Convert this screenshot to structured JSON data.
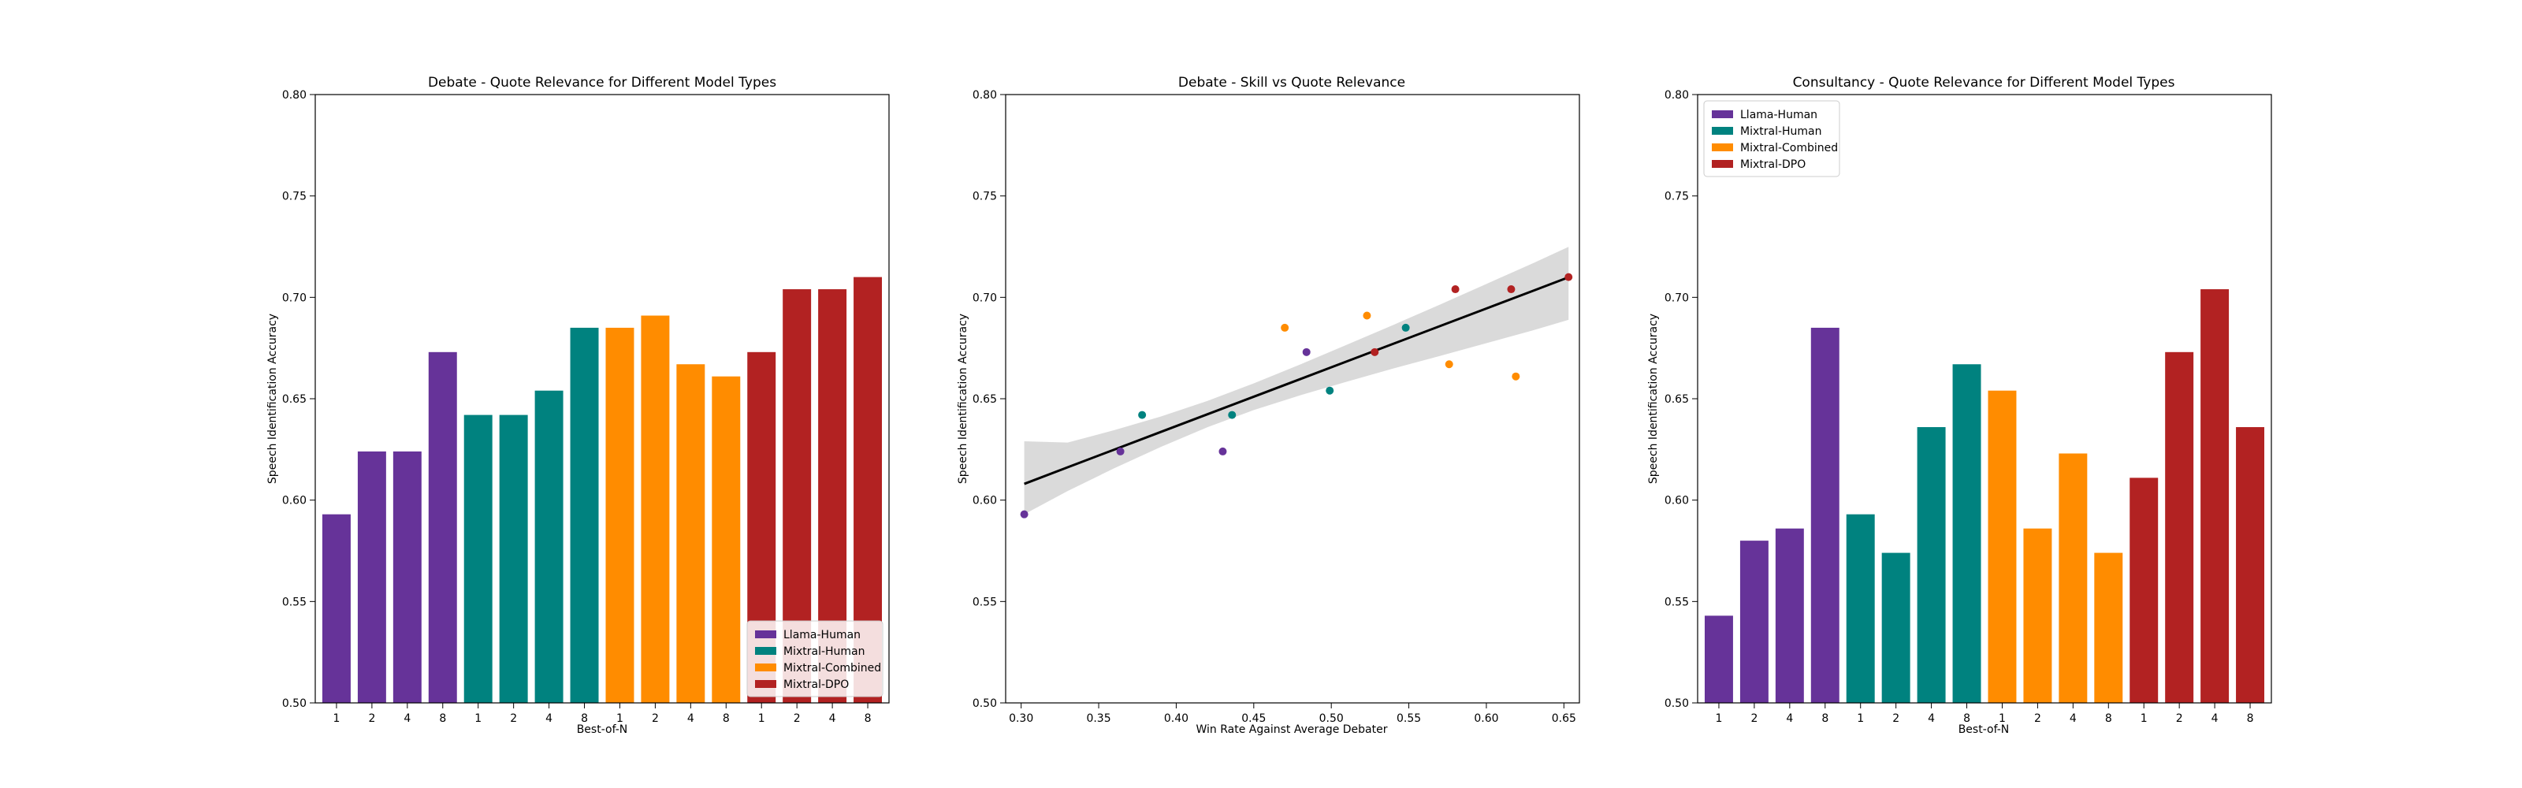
{
  "colors": {
    "Llama-Human": "#663399",
    "Mixtral-Human": "#00827f",
    "Mixtral-Combined": "#ff8c00",
    "Mixtral-DPO": "#b22222",
    "fit_line": "#000000",
    "ci_band": "#d3d3d3"
  },
  "chart_data": [
    {
      "type": "bar",
      "title": "Debate - Quote Relevance for Different Model Types",
      "xlabel": "Best-of-N",
      "ylabel": "Speech Identification Accuracy",
      "ylim": [
        0.5,
        0.8
      ],
      "yticks": [
        0.5,
        0.55,
        0.6,
        0.65,
        0.7,
        0.75,
        0.8
      ],
      "categories": [
        "1",
        "2",
        "4",
        "8"
      ],
      "legend_position": "lower-right",
      "series": [
        {
          "name": "Llama-Human",
          "values": [
            0.593,
            0.624,
            0.624,
            0.673
          ]
        },
        {
          "name": "Mixtral-Human",
          "values": [
            0.642,
            0.642,
            0.654,
            0.685
          ]
        },
        {
          "name": "Mixtral-Combined",
          "values": [
            0.685,
            0.691,
            0.667,
            0.661
          ]
        },
        {
          "name": "Mixtral-DPO",
          "values": [
            0.673,
            0.704,
            0.704,
            0.71
          ]
        }
      ]
    },
    {
      "type": "scatter",
      "title": "Debate - Skill vs Quote Relevance",
      "xlabel": "Win Rate Against Average Debater",
      "ylabel": "Speech Identification Accuracy",
      "xlim": [
        0.29,
        0.66
      ],
      "ylim": [
        0.5,
        0.8
      ],
      "xticks": [
        0.3,
        0.35,
        0.4,
        0.45,
        0.5,
        0.55,
        0.6,
        0.65
      ],
      "yticks": [
        0.5,
        0.55,
        0.6,
        0.65,
        0.7,
        0.75,
        0.8
      ],
      "series": [
        {
          "name": "Llama-Human",
          "points": [
            [
              0.302,
              0.593
            ],
            [
              0.364,
              0.624
            ],
            [
              0.43,
              0.624
            ],
            [
              0.484,
              0.673
            ]
          ]
        },
        {
          "name": "Mixtral-Human",
          "points": [
            [
              0.378,
              0.642
            ],
            [
              0.436,
              0.642
            ],
            [
              0.499,
              0.654
            ],
            [
              0.548,
              0.685
            ]
          ]
        },
        {
          "name": "Mixtral-Combined",
          "points": [
            [
              0.47,
              0.685
            ],
            [
              0.523,
              0.691
            ],
            [
              0.576,
              0.667
            ],
            [
              0.619,
              0.661
            ]
          ]
        },
        {
          "name": "Mixtral-DPO",
          "points": [
            [
              0.528,
              0.673
            ],
            [
              0.58,
              0.704
            ],
            [
              0.616,
              0.704
            ],
            [
              0.653,
              0.71
            ]
          ]
        }
      ],
      "fit": {
        "x": [
          0.302,
          0.33,
          0.36,
          0.39,
          0.42,
          0.45,
          0.48,
          0.51,
          0.54,
          0.57,
          0.6,
          0.63,
          0.653
        ],
        "y": [
          0.608,
          0.6162,
          0.6249,
          0.6336,
          0.6423,
          0.651,
          0.6597,
          0.6684,
          0.6771,
          0.6858,
          0.6945,
          0.7032,
          0.7099
        ],
        "ci_low": [
          0.593,
          0.6045,
          0.6157,
          0.6262,
          0.6359,
          0.6444,
          0.6517,
          0.6584,
          0.6649,
          0.6711,
          0.6774,
          0.6837,
          0.6889
        ],
        "ci_high": [
          0.629,
          0.6284,
          0.6345,
          0.6412,
          0.6489,
          0.6576,
          0.6669,
          0.6766,
          0.6864,
          0.6964,
          0.7066,
          0.7168,
          0.7249
        ]
      }
    },
    {
      "type": "bar",
      "title": "Consultancy - Quote Relevance for Different Model Types",
      "xlabel": "Best-of-N",
      "ylabel": "Speech Identification Accuracy",
      "ylim": [
        0.5,
        0.8
      ],
      "yticks": [
        0.5,
        0.55,
        0.6,
        0.65,
        0.7,
        0.75,
        0.8
      ],
      "categories": [
        "1",
        "2",
        "4",
        "8"
      ],
      "legend_position": "upper-left",
      "series": [
        {
          "name": "Llama-Human",
          "values": [
            0.543,
            0.58,
            0.586,
            0.685
          ]
        },
        {
          "name": "Mixtral-Human",
          "values": [
            0.593,
            0.574,
            0.636,
            0.667
          ]
        },
        {
          "name": "Mixtral-Combined",
          "values": [
            0.654,
            0.586,
            0.623,
            0.574
          ]
        },
        {
          "name": "Mixtral-DPO",
          "values": [
            0.611,
            0.673,
            0.704,
            0.636
          ]
        }
      ]
    }
  ]
}
